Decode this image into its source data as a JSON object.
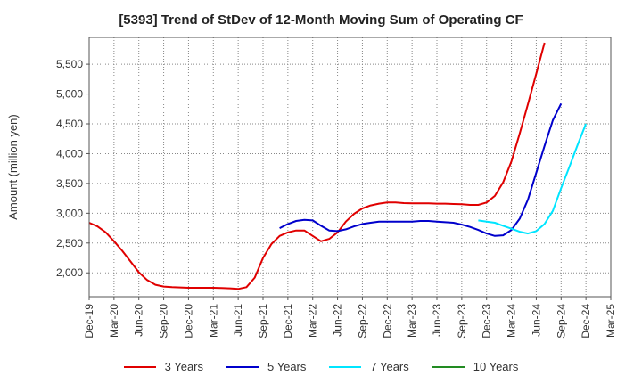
{
  "chart_data": {
    "type": "line",
    "title": "[5393]  Trend of StDev of 12-Month Moving Sum of Operating CF",
    "ylabel": "Amount (million yen)",
    "xlabel": "",
    "ylim": [
      1600,
      5950
    ],
    "yticks": [
      2000,
      2500,
      3000,
      3500,
      4000,
      4500,
      5000,
      5500
    ],
    "ytick_labels": [
      "2,000",
      "2,500",
      "3,000",
      "3,500",
      "4,000",
      "4,500",
      "5,000",
      "5,500"
    ],
    "x_start": "Dec-19",
    "x_months": 63,
    "xticks": [
      "Dec-19",
      "Mar-20",
      "Jun-20",
      "Sep-20",
      "Dec-20",
      "Mar-21",
      "Jun-21",
      "Sep-21",
      "Dec-21",
      "Mar-22",
      "Jun-22",
      "Sep-22",
      "Dec-22",
      "Mar-23",
      "Jun-23",
      "Sep-23",
      "Dec-23",
      "Mar-24",
      "Jun-24",
      "Sep-24",
      "Dec-24",
      "Mar-25"
    ],
    "grid": true,
    "legend_position": "bottom",
    "series": [
      {
        "name": "3 Years",
        "color": "#e00000",
        "start": "Dec-19",
        "values": [
          2840,
          2780,
          2680,
          2530,
          2370,
          2190,
          2010,
          1880,
          1800,
          1770,
          1760,
          1755,
          1750,
          1750,
          1750,
          1750,
          1745,
          1740,
          1730,
          1760,
          1920,
          2250,
          2480,
          2620,
          2680,
          2710,
          2710,
          2620,
          2530,
          2570,
          2680,
          2860,
          2990,
          3080,
          3130,
          3160,
          3180,
          3180,
          3170,
          3165,
          3165,
          3165,
          3160,
          3160,
          3155,
          3150,
          3140,
          3140,
          3180,
          3290,
          3520,
          3870,
          4340,
          4830,
          5340,
          5860
        ]
      },
      {
        "name": "5 Years",
        "color": "#0000cc",
        "start": "Nov-21",
        "values": [
          2750,
          2820,
          2870,
          2890,
          2880,
          2790,
          2710,
          2700,
          2730,
          2780,
          2820,
          2840,
          2860,
          2860,
          2860,
          2860,
          2860,
          2870,
          2870,
          2860,
          2850,
          2840,
          2810,
          2770,
          2720,
          2660,
          2620,
          2630,
          2720,
          2910,
          3230,
          3680,
          4130,
          4560,
          4840
        ]
      },
      {
        "name": "7 Years",
        "color": "#00e5ff",
        "start": "Nov-23",
        "values": [
          2880,
          2860,
          2840,
          2790,
          2740,
          2690,
          2660,
          2700,
          2820,
          3040,
          3420,
          3780,
          4150,
          4500
        ]
      },
      {
        "name": "10 Years",
        "color": "#228b22",
        "start": "Dec-24",
        "values": []
      }
    ]
  }
}
